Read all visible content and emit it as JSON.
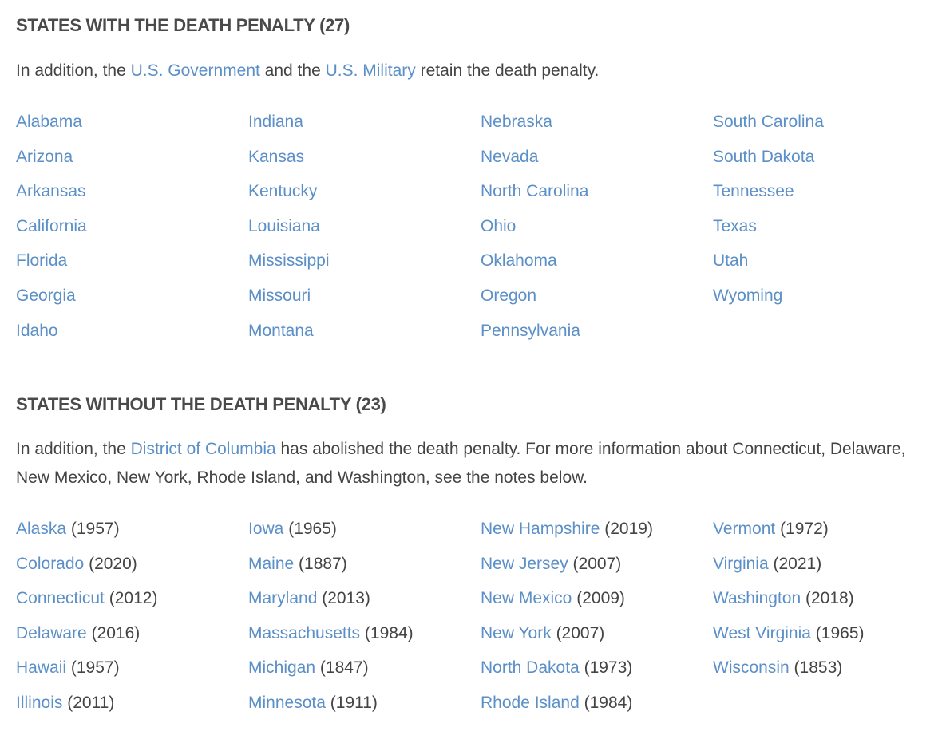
{
  "with_penalty": {
    "heading": "STATES WITH THE DEATH PENALTY (27)",
    "intro": {
      "part1": "In addition, the ",
      "link1": "U.S. Government",
      "part2": " and the ",
      "link2": "U.S. Military",
      "part3": " retain the death penalty."
    },
    "states": [
      "Alabama",
      "Arizona",
      "Arkansas",
      "California",
      "Florida",
      "Georgia",
      "Idaho",
      "Indiana",
      "Kansas",
      "Kentucky",
      "Louisiana",
      "Mississippi",
      "Missouri",
      "Montana",
      "Nebraska",
      "Nevada",
      "North Carolina",
      "Ohio",
      "Oklahoma",
      "Oregon",
      "Pennsylvania",
      "South Carolina",
      "South Dakota",
      "Tennessee",
      "Texas",
      "Utah",
      "Wyoming"
    ]
  },
  "without_penalty": {
    "heading": "STATES WITHOUT THE DEATH PENALTY (23)",
    "intro": {
      "part1": "In addition, the ",
      "link1": "District of Columbia",
      "part2": " has abolished the death penalty. For more information about Connecticut, Delaware, New Mexico, New York, Rhode Island, and Washington, see the notes below."
    },
    "states": [
      {
        "name": "Alaska",
        "year": "(1957)"
      },
      {
        "name": "Colorado",
        "year": "(2020)"
      },
      {
        "name": "Connecticut",
        "year": "(2012)"
      },
      {
        "name": "Delaware",
        "year": "(2016)"
      },
      {
        "name": "Hawaii",
        "year": "(1957)"
      },
      {
        "name": "Illinois",
        "year": "(2011)"
      },
      {
        "name": "Iowa",
        "year": "(1965)"
      },
      {
        "name": "Maine",
        "year": "(1887)"
      },
      {
        "name": "Maryland",
        "year": "(2013)"
      },
      {
        "name": "Massachusetts",
        "year": "(1984)"
      },
      {
        "name": "Michigan",
        "year": "(1847)"
      },
      {
        "name": "Minnesota",
        "year": "(1911)"
      },
      {
        "name": "New Hampshire",
        "year": "(2019)"
      },
      {
        "name": "New Jersey",
        "year": "(2007)"
      },
      {
        "name": "New Mexico",
        "year": "(2009)"
      },
      {
        "name": "New York",
        "year": "(2007)"
      },
      {
        "name": "North Dakota",
        "year": "(1973)"
      },
      {
        "name": "Rhode Island",
        "year": "(1984)"
      },
      {
        "name": "Vermont",
        "year": "(1972)"
      },
      {
        "name": "Virginia",
        "year": "(2021)"
      },
      {
        "name": "Washington",
        "year": "(2018)"
      },
      {
        "name": "West Virginia",
        "year": "(1965)"
      },
      {
        "name": "Wisconsin",
        "year": "(1853)"
      }
    ]
  },
  "colors": {
    "link": "#5b8fc7",
    "text": "#444444",
    "heading": "#4a4a4a"
  }
}
